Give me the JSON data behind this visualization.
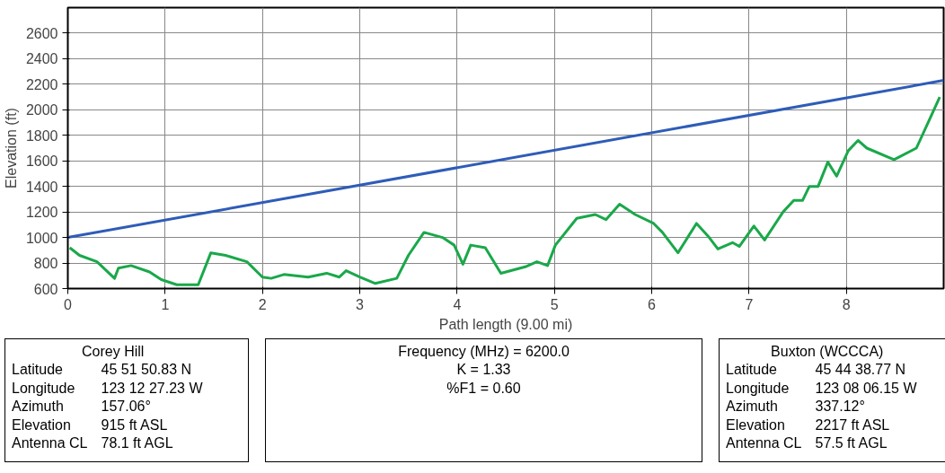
{
  "chart_data": {
    "type": "line",
    "xlabel": "Path length (9.00 mi)",
    "ylabel": "Elevation (ft)",
    "xlim": [
      0,
      9
    ],
    "ylim": [
      600,
      2800
    ],
    "xticks": [
      0,
      1,
      2,
      3,
      4,
      5,
      6,
      7,
      8
    ],
    "yticks": [
      600,
      800,
      1000,
      1200,
      1400,
      1600,
      1800,
      2000,
      2200,
      2400,
      2600
    ],
    "grid": true,
    "line_style": "solid",
    "series": [
      {
        "color": "#1aa84a",
        "x": [
          0.02,
          0.12,
          0.3,
          0.48,
          0.52,
          0.65,
          0.84,
          0.96,
          1.12,
          1.34,
          1.47,
          1.62,
          1.84,
          2.0,
          2.09,
          2.22,
          2.47,
          2.66,
          2.79,
          2.86,
          3.0,
          3.16,
          3.38,
          3.5,
          3.66,
          3.85,
          3.97,
          4.06,
          4.14,
          4.29,
          4.45,
          4.7,
          4.82,
          4.93,
          5.01,
          5.23,
          5.42,
          5.53,
          5.67,
          5.83,
          6.02,
          6.11,
          6.27,
          6.46,
          6.58,
          6.68,
          6.83,
          6.9,
          7.05,
          7.16,
          7.35,
          7.46,
          7.55,
          7.62,
          7.71,
          7.81,
          7.9,
          8.02,
          8.12,
          8.21,
          8.49,
          8.72,
          8.84,
          8.96
        ],
        "values": [
          920,
          860,
          810,
          680,
          760,
          780,
          730,
          670,
          630,
          630,
          880,
          860,
          810,
          690,
          680,
          710,
          690,
          720,
          690,
          740,
          690,
          640,
          680,
          860,
          1040,
          1000,
          940,
          790,
          940,
          920,
          720,
          770,
          810,
          780,
          940,
          1150,
          1180,
          1140,
          1260,
          1180,
          1110,
          1040,
          880,
          1110,
          1010,
          910,
          960,
          930,
          1090,
          980,
          1200,
          1290,
          1290,
          1400,
          1400,
          1590,
          1480,
          1680,
          1760,
          1700,
          1610,
          1700,
          1900,
          2100
        ]
      },
      {
        "color": "#2e5cb8",
        "x": [
          0,
          9
        ],
        "values": [
          1000,
          2230
        ]
      }
    ],
    "annotations": [
      "Corey Hill\nLatitude\t45 51 50.83 N\nLongitude\t123 12 27.23 W\nAzimuth\t157.06°\nElevation\t915 ft ASL\nAntenna CL\t78.1 ft AGL",
      "Frequency (MHz) = 6200.0\nK = 1.33\n%F1 = 0.60",
      "Buxton (WCCCA)\nLatitude\t45 44 38.77 N\nLongitude\t123 08 06.15 W\nAzimuth\t337.12°\nElevation\t2217 ft ASL\nAntenna CL\t57.5 ft AGL"
    ]
  }
}
